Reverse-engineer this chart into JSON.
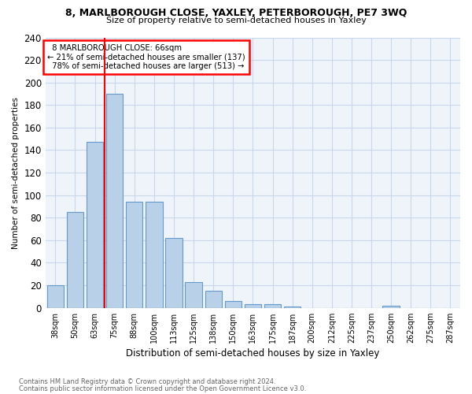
{
  "title": "8, MARLBOROUGH CLOSE, YAXLEY, PETERBOROUGH, PE7 3WQ",
  "subtitle": "Size of property relative to semi-detached houses in Yaxley",
  "xlabel": "Distribution of semi-detached houses by size in Yaxley",
  "ylabel": "Number of semi-detached properties",
  "footnote1": "Contains HM Land Registry data © Crown copyright and database right 2024.",
  "footnote2": "Contains public sector information licensed under the Open Government Licence v3.0.",
  "categories": [
    "38sqm",
    "50sqm",
    "63sqm",
    "75sqm",
    "88sqm",
    "100sqm",
    "113sqm",
    "125sqm",
    "138sqm",
    "150sqm",
    "163sqm",
    "175sqm",
    "187sqm",
    "200sqm",
    "212sqm",
    "225sqm",
    "237sqm",
    "250sqm",
    "262sqm",
    "275sqm",
    "287sqm"
  ],
  "values": [
    20,
    85,
    147,
    190,
    94,
    94,
    62,
    23,
    15,
    6,
    3,
    3,
    1,
    0,
    0,
    0,
    0,
    2,
    0,
    0,
    0
  ],
  "bar_color": "#b8d0e8",
  "bar_edge_color": "#6699cc",
  "grid_color": "#c8d8ea",
  "red_line_x": 2.5,
  "property_label": "8 MARLBOROUGH CLOSE: 66sqm",
  "smaller_text": "← 21% of semi-detached houses are smaller (137)",
  "larger_text": "78% of semi-detached houses are larger (513) →",
  "ylim": [
    0,
    240
  ],
  "yticks": [
    0,
    20,
    40,
    60,
    80,
    100,
    120,
    140,
    160,
    180,
    200,
    220,
    240
  ],
  "bar_width": 0.85,
  "bg_color": "#eef4fa"
}
